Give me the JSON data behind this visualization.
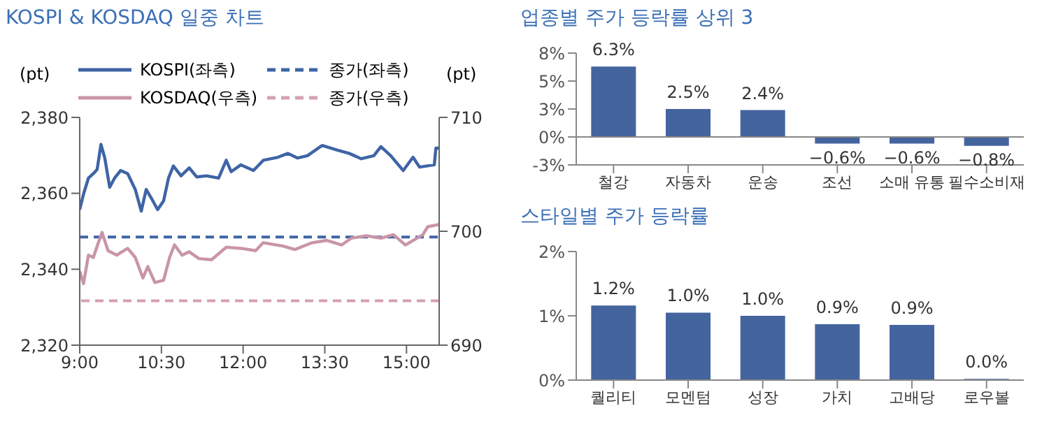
{
  "chart_data": [
    {
      "type": "line",
      "title": "KOSPI & KOSDAQ 일중 차트",
      "ylabel": "(pt)",
      "y2label": "(pt)",
      "xlim": [
        9,
        15.6
      ],
      "xticks": [
        {
          "value": 9,
          "label": "9:00"
        },
        {
          "value": 10.5,
          "label": "10:30"
        },
        {
          "value": 12,
          "label": "12:00"
        },
        {
          "value": 13.5,
          "label": "13:30"
        },
        {
          "value": 15,
          "label": "15:00"
        }
      ],
      "ylim": [
        2320,
        2380
      ],
      "yticks": [
        {
          "value": 2320,
          "label": "2,320"
        },
        {
          "value": 2340,
          "label": "2,340"
        },
        {
          "value": 2360,
          "label": "2,360"
        },
        {
          "value": 2380,
          "label": "2,380"
        }
      ],
      "y2lim": [
        690,
        710
      ],
      "y2ticks": [
        690,
        700,
        710
      ],
      "legend": "top",
      "line_style": "solid",
      "series": [
        {
          "name": "KOSPI(좌측)",
          "color": "#3f64a6",
          "x": [
            9,
            9.07,
            9.16,
            9.25,
            9.32,
            9.39,
            9.46,
            9.55,
            9.64,
            9.75,
            9.88,
            10.02,
            10.13,
            10.22,
            10.32,
            10.43,
            10.54,
            10.63,
            10.72,
            10.86,
            11.01,
            11.15,
            11.33,
            11.55,
            11.69,
            11.78,
            11.96,
            12.19,
            12.37,
            12.64,
            12.82,
            13.0,
            13.18,
            13.45,
            13.72,
            13.95,
            14.17,
            14.4,
            14.53,
            14.71,
            14.94,
            15.12,
            15.24,
            15.51,
            15.54,
            15.6
          ],
          "values": [
            2355.7,
            2359.8,
            2364,
            2365.2,
            2366.3,
            2372.9,
            2369.3,
            2361.6,
            2364,
            2366,
            2365.2,
            2361,
            2355.3,
            2361,
            2358.6,
            2355.7,
            2358,
            2364,
            2367.2,
            2364.6,
            2366.7,
            2364.3,
            2364.6,
            2364,
            2368.7,
            2365.7,
            2367.5,
            2366,
            2368.7,
            2369.5,
            2370.5,
            2369.3,
            2369.9,
            2372.6,
            2371.4,
            2370.5,
            2369.1,
            2369.9,
            2372.3,
            2369.9,
            2366,
            2369.5,
            2366.9,
            2367.5,
            2371.9,
            2371.9
          ]
        },
        {
          "name": "KOSDAQ(우측)",
          "color": "#c995a8",
          "axis": "y2",
          "x": [
            9,
            9.07,
            9.16,
            9.25,
            9.32,
            9.41,
            9.52,
            9.68,
            9.88,
            10.02,
            10.16,
            10.25,
            10.38,
            10.54,
            10.65,
            10.74,
            10.88,
            11.01,
            11.19,
            11.42,
            11.69,
            11.96,
            12.23,
            12.37,
            12.73,
            12.95,
            13.27,
            13.54,
            13.81,
            13.99,
            14.26,
            14.53,
            14.76,
            14.98,
            15.16,
            15.3,
            15.39,
            15.6
          ],
          "values": [
            696.5,
            695.4,
            697.9,
            697.7,
            698.7,
            699.9,
            698.3,
            697.9,
            698.5,
            697.7,
            695.9,
            696.9,
            695.5,
            695.7,
            697.7,
            698.8,
            697.9,
            698.2,
            697.6,
            697.5,
            698.6,
            698.5,
            698.3,
            699,
            698.7,
            698.4,
            699,
            699.2,
            698.8,
            699.4,
            699.6,
            699.4,
            699.7,
            698.8,
            699.3,
            699.7,
            700.4,
            700.6
          ]
        }
      ],
      "ref_lines": [
        {
          "axis": "y",
          "value": 2348.5,
          "label": "종가(좌측)",
          "color": "#3f64a6",
          "line_style": "dashed"
        },
        {
          "axis": "y2",
          "value": 693.9,
          "label": "종가(우측)",
          "color": "#d4a0b4",
          "line_style": "dashed"
        }
      ]
    },
    {
      "type": "bar",
      "title": "업종별 주가 등락률 상위 3",
      "categories": [
        "철강",
        "자동차",
        "운송",
        "조선",
        "소매 유통",
        "필수소비재"
      ],
      "values": [
        6.3,
        2.5,
        2.4,
        -0.6,
        -0.6,
        -0.8
      ],
      "value_labels": [
        "6.3%",
        "2.5%",
        "2.4%",
        "−0.6%",
        "−0.6%",
        "−0.8%"
      ],
      "color": "#44649e",
      "ylim": [
        -2.5,
        7.5
      ],
      "yticks": [
        {
          "value": -2.5,
          "label": "-3%"
        },
        {
          "value": 0,
          "label": "0%"
        },
        {
          "value": 2.5,
          "label": "3%"
        },
        {
          "value": 5,
          "label": "5%"
        },
        {
          "value": 7.5,
          "label": "8%"
        }
      ]
    },
    {
      "type": "bar",
      "title": "스타일별 주가 등락률",
      "categories": [
        "퀄리티",
        "모멘텀",
        "성장",
        "가치",
        "고배당",
        "로우볼"
      ],
      "values": [
        1.16,
        1.05,
        1.0,
        0.87,
        0.86,
        0.02
      ],
      "value_labels": [
        "1.2%",
        "1.0%",
        "1.0%",
        "0.9%",
        "0.9%",
        "0.0%"
      ],
      "color": "#44649e",
      "ylim": [
        0,
        2
      ],
      "yticks": [
        {
          "value": 0,
          "label": "0%"
        },
        {
          "value": 1,
          "label": "1%"
        },
        {
          "value": 2,
          "label": "2%"
        }
      ]
    }
  ]
}
